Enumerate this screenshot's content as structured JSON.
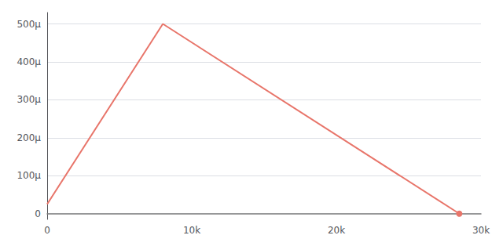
{
  "chart_data": {
    "type": "line",
    "x": [
      0,
      8000,
      28500
    ],
    "values": [
      2.5e-05,
      0.0005,
      0.0
    ],
    "color": "#e8756a",
    "marker": "circle",
    "xlim": [
      0,
      30000
    ],
    "ylim": [
      -1.5e-05,
      0.00053
    ],
    "xticks": [
      0,
      {
        "value": 10000,
        "label": "10k"
      },
      {
        "value": 20000,
        "label": "20k"
      },
      {
        "value": 30000,
        "label": "30k"
      }
    ],
    "yticks": [
      0,
      {
        "value": 0.0001,
        "label": "100μ"
      },
      {
        "value": 0.0002,
        "label": "200μ"
      },
      {
        "value": 0.0003,
        "label": "300μ"
      },
      {
        "value": 0.0004,
        "label": "400μ"
      },
      {
        "value": 0.0005,
        "label": "500μ"
      }
    ],
    "grid": true
  }
}
